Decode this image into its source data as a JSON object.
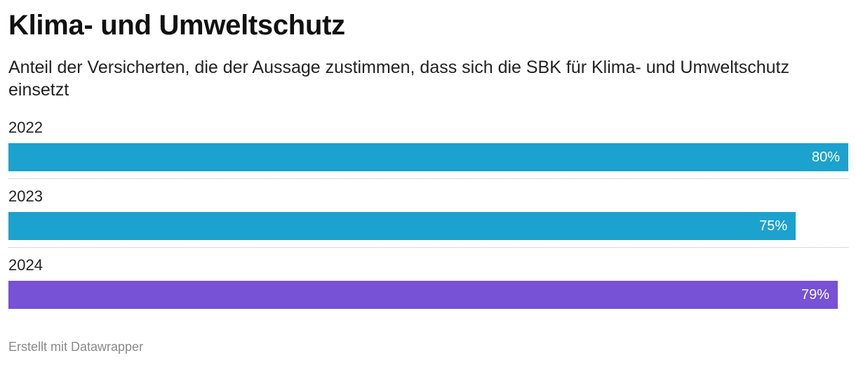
{
  "chart": {
    "title": "Klima- und Umweltschutz",
    "subtitle": "Anteil der Versicherten, die der Aussage zustimmen, dass sich die SBK für Klima- und Umweltschutz einsetzt",
    "footer": "Erstellt mit Datawrapper"
  },
  "chart_data": {
    "type": "bar",
    "orientation": "horizontal",
    "title": "Klima- und Umweltschutz",
    "subtitle": "Anteil der Versicherten, die der Aussage zustimmen, dass sich die SBK für Klima- und Umweltschutz einsetzt",
    "categories": [
      "2022",
      "2023",
      "2024"
    ],
    "values": [
      80,
      75,
      79
    ],
    "value_labels": [
      "80%",
      "75%",
      "79%"
    ],
    "unit": "%",
    "xlim": [
      0,
      80
    ],
    "colors": [
      "#1ba2cf",
      "#1ba2cf",
      "#7751d6"
    ],
    "grid": false,
    "legend": "none"
  }
}
